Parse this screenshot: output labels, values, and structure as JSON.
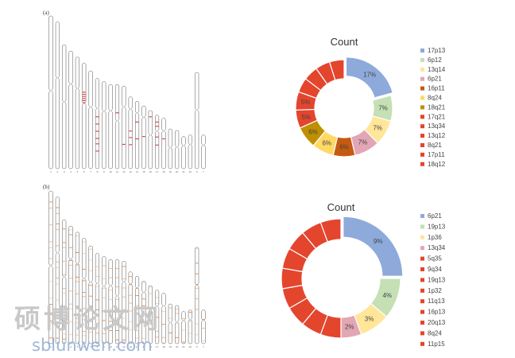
{
  "watermark": {
    "logo_text": "硕博论文网",
    "url": "sblunwen.com"
  },
  "chart_data": [
    {
      "type": "ideogram",
      "panel": "(a)",
      "chromosomes": [
        {
          "n": "1",
          "len": 1.0,
          "cen": 0.49,
          "marks": []
        },
        {
          "n": "2",
          "len": 0.96,
          "cen": 0.38,
          "marks": []
        },
        {
          "n": "3",
          "len": 0.81,
          "cen": 0.46,
          "marks": []
        },
        {
          "n": "4",
          "len": 0.77,
          "cen": 0.28,
          "marks": []
        },
        {
          "n": "5",
          "len": 0.73,
          "cen": 0.28,
          "marks": []
        },
        {
          "n": "6",
          "len": 0.69,
          "cen": 0.38,
          "marks": [
            0.27,
            0.29,
            0.31,
            0.33,
            0.35,
            0.37
          ]
        },
        {
          "n": "7",
          "len": 0.64,
          "cen": 0.37,
          "marks": []
        },
        {
          "n": "8",
          "len": 0.59,
          "cen": 0.33,
          "marks": [
            0.42,
            0.5,
            0.58,
            0.66,
            0.72,
            0.8
          ]
        },
        {
          "n": "9",
          "len": 0.57,
          "cen": 0.34,
          "marks": []
        },
        {
          "n": "10",
          "len": 0.55,
          "cen": 0.31,
          "marks": []
        },
        {
          "n": "11",
          "len": 0.55,
          "cen": 0.43,
          "marks": [
            0.33
          ]
        },
        {
          "n": "12",
          "len": 0.54,
          "cen": 0.25,
          "marks": [
            0.7
          ]
        },
        {
          "n": "13",
          "len": 0.47,
          "cen": 0.17,
          "marks": [
            0.47,
            0.56,
            0.66
          ]
        },
        {
          "n": "14",
          "len": 0.44,
          "cen": 0.17,
          "marks": [
            0.3,
            0.55
          ]
        },
        {
          "n": "15",
          "len": 0.41,
          "cen": 0.18,
          "marks": [
            0.48
          ]
        },
        {
          "n": "16",
          "len": 0.38,
          "cen": 0.42,
          "marks": [
            0.1
          ]
        },
        {
          "n": "17",
          "len": 0.35,
          "cen": 0.3,
          "marks": [
            0.12,
            0.2,
            0.4,
            0.55
          ]
        },
        {
          "n": "18",
          "len": 0.33,
          "cen": 0.25,
          "marks": [
            0.4
          ]
        },
        {
          "n": "19",
          "len": 0.26,
          "cen": 0.47,
          "marks": []
        },
        {
          "n": "20",
          "len": 0.25,
          "cen": 0.43,
          "marks": []
        },
        {
          "n": "21",
          "len": 0.21,
          "cen": 0.28,
          "marks": []
        },
        {
          "n": "22",
          "len": 0.22,
          "cen": 0.28,
          "marks": []
        },
        {
          "n": "X",
          "len": 0.63,
          "cen": 0.39,
          "marks": []
        },
        {
          "n": "Y",
          "len": 0.22,
          "cen": 0.3,
          "marks": []
        }
      ]
    },
    {
      "type": "pie",
      "title": "Count",
      "slices": [
        {
          "label": "17p13",
          "value": 17,
          "pct": "17%",
          "color": "#8eaadb"
        },
        {
          "label": "6p12",
          "value": 7,
          "pct": "7%",
          "color": "#c5e0b4"
        },
        {
          "label": "13q14",
          "value": 7,
          "pct": "7%",
          "color": "#ffe699"
        },
        {
          "label": "6p21",
          "value": 7,
          "pct": "7%",
          "color": "#e2a6b4"
        },
        {
          "label": "16p11",
          "value": 6,
          "pct": "6%",
          "color": "#c55a11"
        },
        {
          "label": "8q24",
          "value": 6,
          "pct": "6%",
          "color": "#ffd966"
        },
        {
          "label": "18q21",
          "value": 6,
          "pct": "6%",
          "color": "#bf9000"
        },
        {
          "label": "17q21",
          "value": 5,
          "pct": "5%",
          "color": "#e4452d"
        },
        {
          "label": "13q34",
          "value": 5,
          "pct": "5%",
          "color": "#e4452d"
        },
        {
          "label": "13q12",
          "value": 4,
          "pct": "",
          "color": "#e4452d"
        },
        {
          "label": "8q21",
          "value": 4,
          "pct": "",
          "color": "#e4452d"
        },
        {
          "label": "17p11",
          "value": 4,
          "pct": "",
          "color": "#e4452d"
        },
        {
          "label": "18q12",
          "value": 4,
          "pct": "",
          "color": "#e4452d"
        }
      ],
      "legend": [
        "17p13",
        "6p12",
        "13q14",
        "6p21",
        "16p11",
        "8q24",
        "18q21",
        "17q21",
        "13q34",
        "13q12",
        "8q21",
        "17p11",
        "18q12"
      ]
    },
    {
      "type": "ideogram",
      "panel": "(b)",
      "chromosomes": [
        {
          "n": "1",
          "len": 1.0,
          "cen": 0.49
        },
        {
          "n": "2",
          "len": 0.96,
          "cen": 0.38
        },
        {
          "n": "3",
          "len": 0.81,
          "cen": 0.46
        },
        {
          "n": "4",
          "len": 0.77,
          "cen": 0.28
        },
        {
          "n": "5",
          "len": 0.73,
          "cen": 0.28
        },
        {
          "n": "6",
          "len": 0.69,
          "cen": 0.38
        },
        {
          "n": "7",
          "len": 0.64,
          "cen": 0.37
        },
        {
          "n": "8",
          "len": 0.59,
          "cen": 0.33
        },
        {
          "n": "9",
          "len": 0.57,
          "cen": 0.34
        },
        {
          "n": "10",
          "len": 0.55,
          "cen": 0.31
        },
        {
          "n": "11",
          "len": 0.55,
          "cen": 0.43
        },
        {
          "n": "12",
          "len": 0.54,
          "cen": 0.25
        },
        {
          "n": "13",
          "len": 0.47,
          "cen": 0.17
        },
        {
          "n": "14",
          "len": 0.44,
          "cen": 0.17
        },
        {
          "n": "15",
          "len": 0.41,
          "cen": 0.18
        },
        {
          "n": "16",
          "len": 0.38,
          "cen": 0.42
        },
        {
          "n": "17",
          "len": 0.35,
          "cen": 0.3
        },
        {
          "n": "18",
          "len": 0.33,
          "cen": 0.25
        },
        {
          "n": "19",
          "len": 0.26,
          "cen": 0.47
        },
        {
          "n": "20",
          "len": 0.25,
          "cen": 0.43
        },
        {
          "n": "21",
          "len": 0.21,
          "cen": 0.28
        },
        {
          "n": "22",
          "len": 0.22,
          "cen": 0.28
        },
        {
          "n": "X",
          "len": 0.63,
          "cen": 0.39
        },
        {
          "n": "Y",
          "len": 0.22,
          "cen": 0.3
        }
      ]
    },
    {
      "type": "pie",
      "title": "Count",
      "slices": [
        {
          "label": "6p21",
          "value": 9,
          "pct": "9%",
          "color": "#8eaadb"
        },
        {
          "label": "19p13",
          "value": 4,
          "pct": "4%",
          "color": "#c5e0b4"
        },
        {
          "label": "1p36",
          "value": 3,
          "pct": "3%",
          "color": "#ffe699"
        },
        {
          "label": "13q34",
          "value": 2,
          "pct": "2%",
          "color": "#e2a6b4"
        },
        {
          "label": "5q35",
          "value": 2,
          "pct": "",
          "color": "#e4452d"
        },
        {
          "label": "9q34",
          "value": 2,
          "pct": "",
          "color": "#e4452d"
        },
        {
          "label": "19q13",
          "value": 2,
          "pct": "",
          "color": "#e4452d"
        },
        {
          "label": "1p32",
          "value": 2,
          "pct": "",
          "color": "#e4452d"
        },
        {
          "label": "11q13",
          "value": 2,
          "pct": "",
          "color": "#e4452d"
        },
        {
          "label": "16p13",
          "value": 2,
          "pct": "",
          "color": "#e4452d"
        },
        {
          "label": "20q13",
          "value": 2,
          "pct": "",
          "color": "#e4452d"
        },
        {
          "label": "8q24",
          "value": 2,
          "pct": "",
          "color": "#e4452d"
        },
        {
          "label": "11p15",
          "value": 2,
          "pct": "",
          "color": "#e4452d"
        }
      ],
      "legend": [
        "6p21",
        "19p13",
        "1p36",
        "13q34",
        "5q35",
        "9q34",
        "19q13",
        "1p32",
        "11q13",
        "16p13",
        "20q13",
        "8q24",
        "11p15"
      ]
    }
  ]
}
